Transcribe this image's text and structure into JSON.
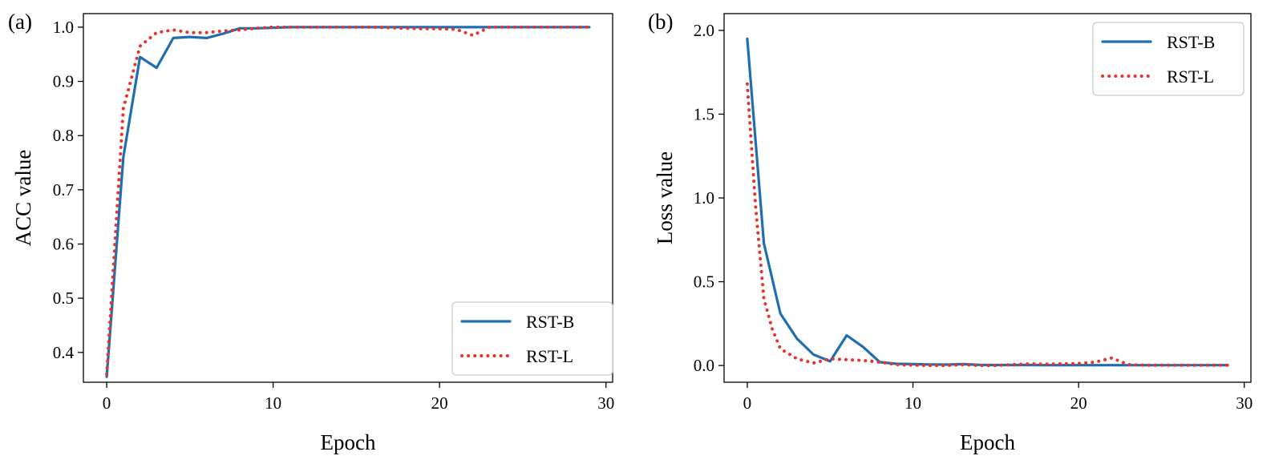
{
  "chart_data": [
    {
      "type": "line",
      "panel_label": "(a)",
      "title": "",
      "xlabel": "Epoch",
      "ylabel": "ACC value",
      "xlim": [
        -1.4,
        30.4
      ],
      "ylim": [
        0.345,
        1.025
      ],
      "xticks": [
        0,
        10,
        20,
        30
      ],
      "xtick_labels": [
        "0",
        "10",
        "20",
        "30"
      ],
      "yticks": [
        0.4,
        0.5,
        0.6,
        0.7,
        0.8,
        0.9,
        1.0
      ],
      "ytick_labels": [
        "0.4",
        "0.5",
        "0.6",
        "0.7",
        "0.8",
        "0.9",
        "1.0"
      ],
      "grid": false,
      "legend_position": "lower-right",
      "series": [
        {
          "name": "RST-B",
          "style": "solid",
          "color": "#1f6fb0",
          "x": [
            0,
            1,
            2,
            3,
            4,
            5,
            6,
            7,
            8,
            9,
            10,
            11,
            12,
            13,
            14,
            15,
            16,
            17,
            18,
            19,
            20,
            21,
            22,
            23,
            24,
            25,
            26,
            27,
            28,
            29
          ],
          "y": [
            0.355,
            0.76,
            0.945,
            0.925,
            0.98,
            0.982,
            0.98,
            0.988,
            0.998,
            0.998,
            0.999,
            1.0,
            1.0,
            1.0,
            1.0,
            1.0,
            1.0,
            1.0,
            1.0,
            1.0,
            1.0,
            1.0,
            1.0,
            1.0,
            1.0,
            1.0,
            1.0,
            1.0,
            1.0,
            1.0
          ]
        },
        {
          "name": "RST-L",
          "style": "dotted",
          "color": "#e8342e",
          "x": [
            0,
            1,
            2,
            3,
            4,
            5,
            6,
            7,
            8,
            9,
            10,
            11,
            12,
            13,
            14,
            15,
            16,
            17,
            18,
            19,
            20,
            21,
            22,
            23,
            24,
            25,
            26,
            27,
            28,
            29
          ],
          "y": [
            0.36,
            0.85,
            0.965,
            0.99,
            0.995,
            0.99,
            0.99,
            0.993,
            0.995,
            0.998,
            1.0,
            1.0,
            1.0,
            1.0,
            1.0,
            1.0,
            1.0,
            0.999,
            0.998,
            0.997,
            0.997,
            0.996,
            0.985,
            1.0,
            1.0,
            1.0,
            1.0,
            1.0,
            1.0,
            1.0
          ]
        }
      ]
    },
    {
      "type": "line",
      "panel_label": "(b)",
      "title": "",
      "xlabel": "Epoch",
      "ylabel": "Loss value",
      "xlim": [
        -1.4,
        30.4
      ],
      "ylim": [
        -0.1,
        2.1
      ],
      "xticks": [
        0,
        10,
        20,
        30
      ],
      "xtick_labels": [
        "0",
        "10",
        "20",
        "30"
      ],
      "yticks": [
        0.0,
        0.5,
        1.0,
        1.5,
        2.0
      ],
      "ytick_labels": [
        "0.0",
        "0.5",
        "1.0",
        "1.5",
        "2.0"
      ],
      "grid": false,
      "legend_position": "upper-right",
      "series": [
        {
          "name": "RST-B",
          "style": "solid",
          "color": "#1f6fb0",
          "x": [
            0,
            1,
            2,
            3,
            4,
            5,
            6,
            7,
            8,
            9,
            10,
            11,
            12,
            13,
            14,
            15,
            16,
            17,
            18,
            19,
            20,
            21,
            22,
            23,
            24,
            25,
            26,
            27,
            28,
            29
          ],
          "y": [
            1.95,
            0.73,
            0.31,
            0.16,
            0.065,
            0.025,
            0.18,
            0.11,
            0.02,
            0.01,
            0.008,
            0.006,
            0.005,
            0.008,
            0.004,
            0.003,
            0.003,
            0.003,
            0.002,
            0.002,
            0.002,
            0.002,
            0.002,
            0.002,
            0.002,
            0.002,
            0.002,
            0.002,
            0.002,
            0.002
          ]
        },
        {
          "name": "RST-L",
          "style": "dotted",
          "color": "#e8342e",
          "x": [
            0,
            0.5,
            1,
            1.5,
            2,
            3,
            4,
            5,
            6,
            7,
            8,
            9,
            10,
            11,
            12,
            13,
            14,
            15,
            16,
            17,
            18,
            19,
            20,
            21,
            22,
            23,
            24,
            25,
            26,
            27,
            28,
            29
          ],
          "y": [
            1.68,
            0.95,
            0.4,
            0.22,
            0.1,
            0.04,
            0.015,
            0.04,
            0.035,
            0.03,
            0.02,
            0.005,
            0.002,
            0.0,
            0.0,
            0.005,
            0.0,
            0.0,
            0.005,
            0.01,
            0.008,
            0.01,
            0.012,
            0.02,
            0.045,
            0.005,
            0.002,
            0.002,
            0.002,
            0.002,
            0.002,
            0.002
          ]
        }
      ]
    }
  ]
}
